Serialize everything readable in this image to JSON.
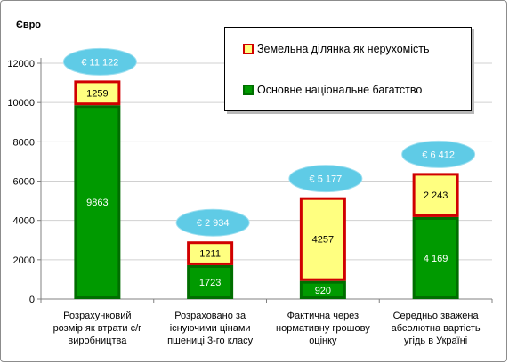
{
  "chart_data": {
    "type": "bar",
    "stacked": true,
    "ylabel": "Євро",
    "ylim": [
      0,
      12000
    ],
    "yticks": [
      "0",
      "2000",
      "4000",
      "6000",
      "8000",
      "10000",
      "12000"
    ],
    "grid": true,
    "legend_position": "top-right",
    "categories": [
      [
        "Розрахунковий",
        "розмір як втрати с/г",
        "виробництва"
      ],
      [
        "Розраховано за",
        "існуючими цінами",
        "пшениці 3-го класу"
      ],
      [
        "Фактична через",
        "нормативну грошову",
        "оцінку"
      ],
      [
        "Середньо зважена",
        "абсолютна вартість",
        "угідь в Україні"
      ]
    ],
    "series": [
      {
        "name": "Основне національне багатство",
        "fill": "#009a00",
        "border": "#006e00",
        "values": [
          9863,
          1723,
          920,
          4169
        ],
        "labels": [
          "9863",
          "1723",
          "920",
          "4 169"
        ]
      },
      {
        "name": "Земельна ділянка як нерухомість",
        "fill": "#ffff80",
        "border": "#d00000",
        "values": [
          1259,
          1211,
          4257,
          2243
        ],
        "labels": [
          "1259",
          "1211",
          "4257",
          "2 243"
        ]
      }
    ],
    "totals": [
      "€ 11 122",
      "€ 2 934",
      "€ 5 177",
      "€ 6 412"
    ],
    "total_bubble_color": "#5fcbe6"
  }
}
